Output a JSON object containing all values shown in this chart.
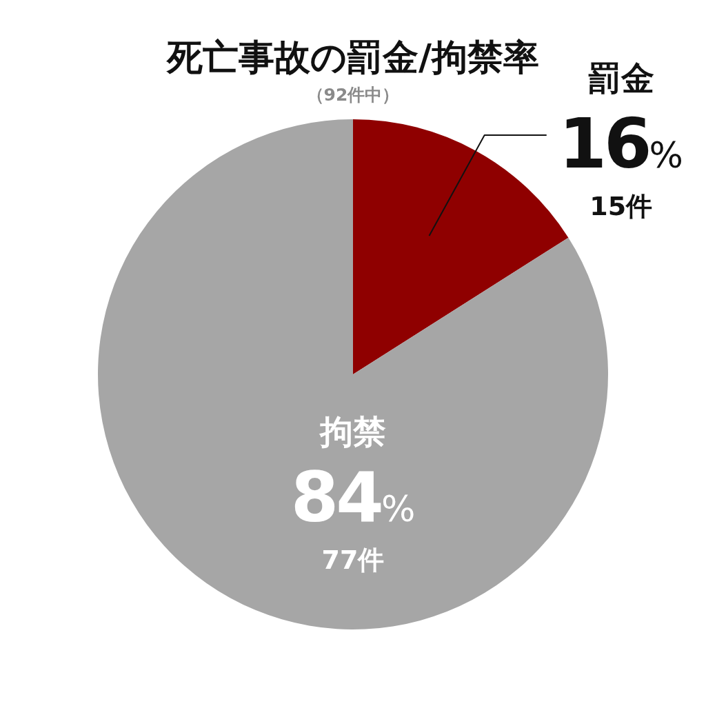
{
  "chart_data": {
    "type": "pie",
    "title": "死亡事故の罰金/拘禁率",
    "subtitle": "（92件中）",
    "categories": [
      "罰金",
      "拘禁"
    ],
    "values": [
      16,
      84
    ],
    "colors": [
      "#8f0000",
      "#a6a6a6"
    ],
    "value_labels": [
      "16%\n15件",
      "84%\n77件"
    ]
  }
}
